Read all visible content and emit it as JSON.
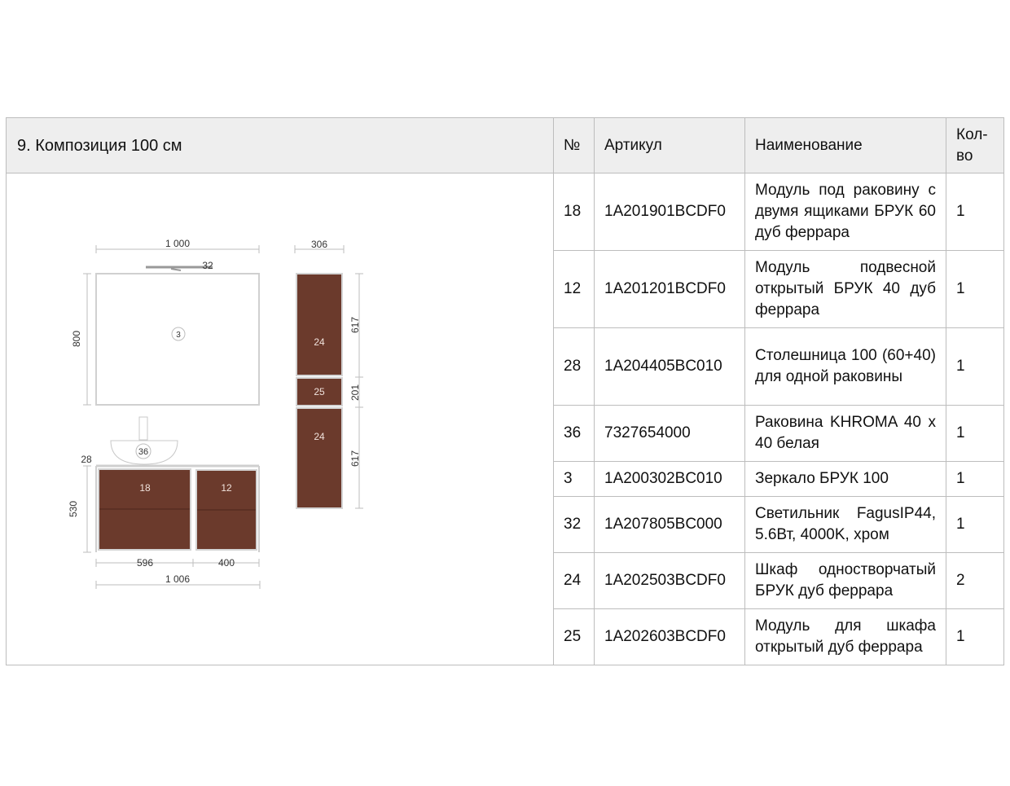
{
  "header": {
    "composition_title": "9. Композиция 100 см",
    "col_num": "№",
    "col_article": "Артикул",
    "col_name": "Наименование",
    "col_qty": "Кол-во"
  },
  "rows": [
    {
      "num": "18",
      "article": "1A201901BCDF0",
      "name": "Модуль под раковину с двумя ящиками БРУК 60 дуб феррара",
      "qty": "1"
    },
    {
      "num": "12",
      "article": "1A201201BCDF0",
      "name": "Модуль подвесной открытый БРУК 40 дуб феррара",
      "qty": "1"
    },
    {
      "num": "28",
      "article": "1A204405BC010",
      "name": "Столешница 100 (60+40) для одной раковины",
      "qty": "1"
    },
    {
      "num": "36",
      "article": "7327654000",
      "name": "Раковина KHROMA 40 х 40 белая",
      "qty": "1"
    },
    {
      "num": "3",
      "article": "1A200302BC010",
      "name": "Зеркало БРУК 100",
      "qty": "1"
    },
    {
      "num": "32",
      "article": "1A207805BC000",
      "name": "Светильник FagusIP44, 5.6Вт, 4000K, хром",
      "qty": "1"
    },
    {
      "num": "24",
      "article": "1A202503BCDF0",
      "name": "Шкаф одностворчатый БРУК дуб феррара",
      "qty": "2"
    },
    {
      "num": "25",
      "article": "1A202603BCDF0",
      "name": "Модуль для шкафа открытый дуб феррара",
      "qty": "1"
    }
  ],
  "drawing": {
    "dim_mirror_width": "1 000",
    "dim_lamp": "32",
    "dim_mirror_height": "800",
    "label_mirror": "3",
    "label_sink": "36",
    "dim_top": "28",
    "dim_cabinet_height": "530",
    "label_module_18": "18",
    "label_module_12": "12",
    "dim_module_18_width": "596",
    "dim_module_12_width": "400",
    "dim_total_width": "1 006",
    "dim_column_width": "306",
    "label_tall_top": "24",
    "label_open": "25",
    "label_tall_bottom": "24",
    "dim_tall_top": "617",
    "dim_open": "201",
    "dim_tall_bottom": "617"
  },
  "colors": {
    "wood": "#6b3a2c",
    "outline": "#cfcfcf",
    "header_bg": "#eeeeee"
  }
}
